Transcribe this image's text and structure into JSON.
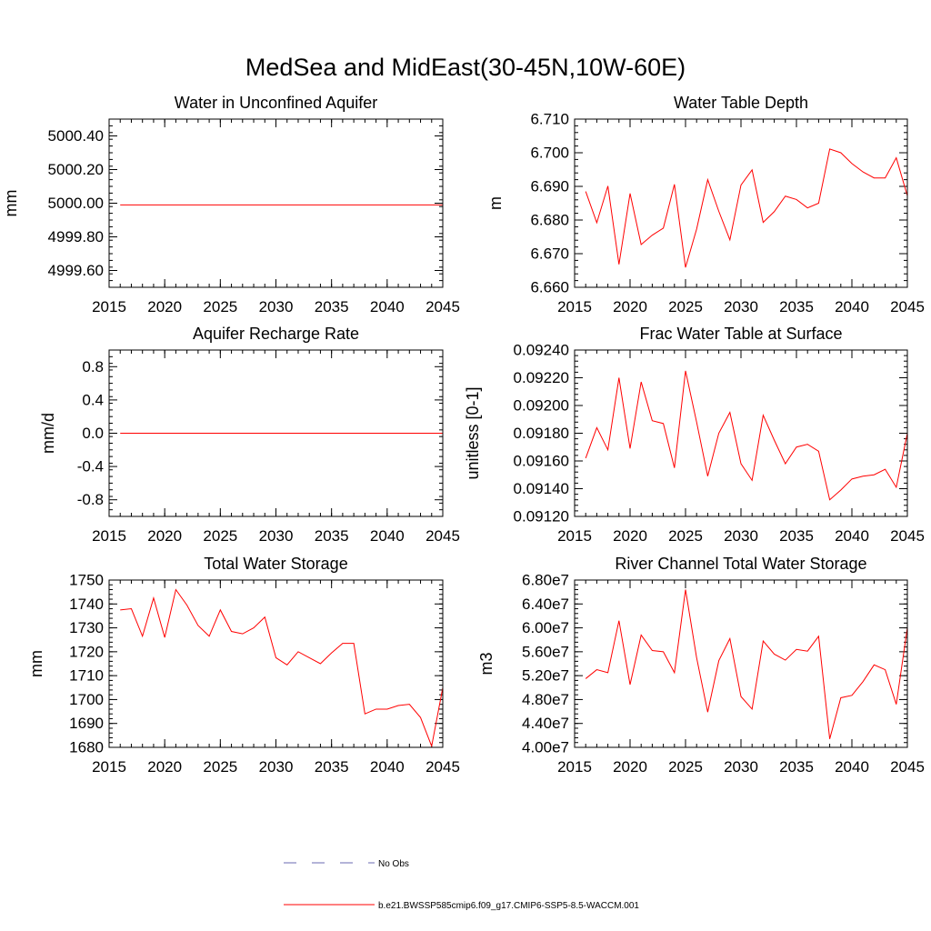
{
  "figure_title": "MedSea and MidEast(30-45N,10W-60E)",
  "chart_data": [
    {
      "type": "line",
      "title": "Water in Unconfined Aquifer",
      "xlabel": "",
      "ylabel": "mm",
      "xlim": [
        2015,
        2045
      ],
      "ylim": [
        4999.5,
        5000.5
      ],
      "xticks": [
        2015,
        2020,
        2025,
        2030,
        2035,
        2040,
        2045
      ],
      "yticks": [
        4999.6,
        4999.8,
        5000.0,
        5000.2,
        5000.4
      ],
      "ytick_labels": [
        "4999.60",
        "4999.80",
        "5000.00",
        "5000.20",
        "5000.40"
      ],
      "series": [
        {
          "name": "b.e21.BWSSP585cmip6.f09_g17.CMIP6-SSP5-8.5-WACCM.001",
          "color": "#ff0000",
          "x": [
            2016,
            2017,
            2018,
            2019,
            2020,
            2021,
            2022,
            2023,
            2024,
            2025,
            2026,
            2027,
            2028,
            2029,
            2030,
            2031,
            2032,
            2033,
            2034,
            2035,
            2036,
            2037,
            2038,
            2039,
            2040,
            2041,
            2042,
            2043,
            2044,
            2045
          ],
          "values": [
            4999.99,
            4999.99,
            4999.99,
            4999.99,
            4999.99,
            4999.99,
            4999.99,
            4999.99,
            4999.99,
            4999.99,
            4999.99,
            4999.99,
            4999.99,
            4999.99,
            4999.99,
            4999.99,
            4999.99,
            4999.99,
            4999.99,
            4999.99,
            4999.99,
            4999.99,
            4999.99,
            4999.99,
            4999.99,
            4999.99,
            4999.99,
            4999.99,
            4999.99,
            4999.99
          ]
        }
      ]
    },
    {
      "type": "line",
      "title": "Water Table Depth",
      "xlabel": "",
      "ylabel": "m",
      "xlim": [
        2015,
        2045
      ],
      "ylim": [
        6.66,
        6.71
      ],
      "xticks": [
        2015,
        2020,
        2025,
        2030,
        2035,
        2040,
        2045
      ],
      "yticks": [
        6.66,
        6.67,
        6.68,
        6.69,
        6.7,
        6.71
      ],
      "ytick_labels": [
        "6.660",
        "6.670",
        "6.680",
        "6.690",
        "6.700",
        "6.710"
      ],
      "series": [
        {
          "name": "b.e21.BWSSP585cmip6.f09_g17.CMIP6-SSP5-8.5-WACCM.001",
          "color": "#ff0000",
          "x": [
            2016,
            2017,
            2018,
            2019,
            2020,
            2021,
            2022,
            2023,
            2024,
            2025,
            2026,
            2027,
            2028,
            2029,
            2030,
            2031,
            2032,
            2033,
            2034,
            2035,
            2036,
            2037,
            2038,
            2039,
            2040,
            2041,
            2042,
            2043,
            2044,
            2045
          ],
          "values": [
            6.6885,
            6.6792,
            6.6901,
            6.6668,
            6.6879,
            6.6727,
            6.6755,
            6.6776,
            6.6906,
            6.6659,
            6.6773,
            6.692,
            6.6826,
            6.6741,
            6.6904,
            6.6949,
            6.6793,
            6.6825,
            6.6871,
            6.6861,
            6.6836,
            6.685,
            6.7011,
            6.7,
            6.6968,
            6.6943,
            6.6925,
            6.6925,
            6.6985,
            6.6872
          ]
        }
      ]
    },
    {
      "type": "line",
      "title": "Aquifer Recharge Rate",
      "xlabel": "",
      "ylabel": "mm/d",
      "xlim": [
        2015,
        2045
      ],
      "ylim": [
        -1.0,
        1.0
      ],
      "xticks": [
        2015,
        2020,
        2025,
        2030,
        2035,
        2040,
        2045
      ],
      "yticks": [
        -0.8,
        -0.4,
        0.0,
        0.4,
        0.8
      ],
      "ytick_labels": [
        "-0.8",
        "-0.4",
        "0.0",
        "0.4",
        "0.8"
      ],
      "series": [
        {
          "name": "b.e21.BWSSP585cmip6.f09_g17.CMIP6-SSP5-8.5-WACCM.001",
          "color": "#ff0000",
          "x": [
            2016,
            2017,
            2018,
            2019,
            2020,
            2021,
            2022,
            2023,
            2024,
            2025,
            2026,
            2027,
            2028,
            2029,
            2030,
            2031,
            2032,
            2033,
            2034,
            2035,
            2036,
            2037,
            2038,
            2039,
            2040,
            2041,
            2042,
            2043,
            2044,
            2045
          ],
          "values": [
            0,
            0,
            0,
            0,
            0,
            0,
            0,
            0,
            0,
            0,
            0,
            0,
            0,
            0,
            0,
            0,
            0,
            0,
            0,
            0,
            0,
            0,
            0,
            0,
            0,
            0,
            0,
            0,
            0,
            0
          ]
        }
      ]
    },
    {
      "type": "line",
      "title": "Frac Water Table at Surface",
      "xlabel": "",
      "ylabel": "unitless [0-1]",
      "xlim": [
        2015,
        2045
      ],
      "ylim": [
        0.0912,
        0.0924
      ],
      "xticks": [
        2015,
        2020,
        2025,
        2030,
        2035,
        2040,
        2045
      ],
      "yticks": [
        0.0912,
        0.0914,
        0.0916,
        0.0918,
        0.092,
        0.0922,
        0.0924
      ],
      "ytick_labels": [
        "0.09120",
        "0.09140",
        "0.09160",
        "0.09180",
        "0.09200",
        "0.09220",
        "0.09240"
      ],
      "series": [
        {
          "name": "b.e21.BWSSP585cmip6.f09_g17.CMIP6-SSP5-8.5-WACCM.001",
          "color": "#ff0000",
          "x": [
            2016,
            2017,
            2018,
            2019,
            2020,
            2021,
            2022,
            2023,
            2024,
            2025,
            2026,
            2027,
            2028,
            2029,
            2030,
            2031,
            2032,
            2033,
            2034,
            2035,
            2036,
            2037,
            2038,
            2039,
            2040,
            2041,
            2042,
            2043,
            2044,
            2045
          ],
          "values": [
            0.09162,
            0.09184,
            0.09168,
            0.0922,
            0.09169,
            0.09217,
            0.09189,
            0.09187,
            0.09155,
            0.09225,
            0.09188,
            0.09149,
            0.0918,
            0.09195,
            0.09158,
            0.09146,
            0.09193,
            0.09175,
            0.09158,
            0.0917,
            0.09172,
            0.09167,
            0.09132,
            0.09139,
            0.09147,
            0.09149,
            0.0915,
            0.09154,
            0.09141,
            0.0918
          ]
        }
      ]
    },
    {
      "type": "line",
      "title": "Total Water Storage",
      "xlabel": "",
      "ylabel": "mm",
      "xlim": [
        2015,
        2045
      ],
      "ylim": [
        1680,
        1750
      ],
      "xticks": [
        2015,
        2020,
        2025,
        2030,
        2035,
        2040,
        2045
      ],
      "yticks": [
        1680,
        1690,
        1700,
        1710,
        1720,
        1730,
        1740,
        1750
      ],
      "ytick_labels": [
        "1680",
        "1690",
        "1700",
        "1710",
        "1720",
        "1730",
        "1740",
        "1750"
      ],
      "series": [
        {
          "name": "b.e21.BWSSP585cmip6.f09_g17.CMIP6-SSP5-8.5-WACCM.001",
          "color": "#ff0000",
          "x": [
            2016,
            2017,
            2018,
            2019,
            2020,
            2021,
            2022,
            2023,
            2024,
            2025,
            2026,
            2027,
            2028,
            2029,
            2030,
            2031,
            2032,
            2033,
            2034,
            2035,
            2036,
            2037,
            2038,
            2039,
            2040,
            2041,
            2042,
            2043,
            2044,
            2045
          ],
          "values": [
            1737.5,
            1738.0,
            1726.5,
            1742.5,
            1726.0,
            1746.0,
            1739.5,
            1731.0,
            1726.5,
            1737.5,
            1728.5,
            1727.5,
            1730.0,
            1734.5,
            1717.5,
            1714.5,
            1720.0,
            1717.5,
            1715.0,
            1719.5,
            1723.5,
            1723.5,
            1694.0,
            1696.0,
            1696.0,
            1697.5,
            1698.0,
            1692.5,
            1680.5,
            1705.0
          ]
        }
      ]
    },
    {
      "type": "line",
      "title": "River Channel Total Water Storage",
      "xlabel": "",
      "ylabel": "m3",
      "xlim": [
        2015,
        2045
      ],
      "ylim": [
        40000000,
        68000000
      ],
      "xticks": [
        2015,
        2020,
        2025,
        2030,
        2035,
        2040,
        2045
      ],
      "yticks": [
        40000000,
        44000000,
        48000000,
        52000000,
        56000000,
        60000000,
        64000000,
        68000000
      ],
      "ytick_labels": [
        "4.00e7",
        "4.40e7",
        "4.80e7",
        "5.20e7",
        "5.60e7",
        "6.00e7",
        "6.40e7",
        "6.80e7"
      ],
      "series": [
        {
          "name": "b.e21.BWSSP585cmip6.f09_g17.CMIP6-SSP5-8.5-WACCM.001",
          "color": "#ff0000",
          "x": [
            2016,
            2017,
            2018,
            2019,
            2020,
            2021,
            2022,
            2023,
            2024,
            2025,
            2026,
            2027,
            2028,
            2029,
            2030,
            2031,
            2032,
            2033,
            2034,
            2035,
            2036,
            2037,
            2038,
            2039,
            2040,
            2041,
            2042,
            2043,
            2044,
            2045
          ],
          "values": [
            51500000,
            53000000,
            52500000,
            61200000,
            50500000,
            58800000,
            56200000,
            56000000,
            52500000,
            66400000,
            55000000,
            45900000,
            54500000,
            58200000,
            48500000,
            46400000,
            57800000,
            55600000,
            54600000,
            56400000,
            56100000,
            58600000,
            41400000,
            48300000,
            48700000,
            51000000,
            53800000,
            53000000,
            47200000,
            60000000
          ]
        }
      ]
    }
  ],
  "legend": {
    "entries": [
      {
        "label": "No Obs",
        "color": "#6a6ab0",
        "style": "dashed"
      },
      {
        "label": "b.e21.BWSSP585cmip6.f09_g17.CMIP6-SSP5-8.5-WACCM.001",
        "color": "#ff0000",
        "style": "solid"
      }
    ]
  }
}
